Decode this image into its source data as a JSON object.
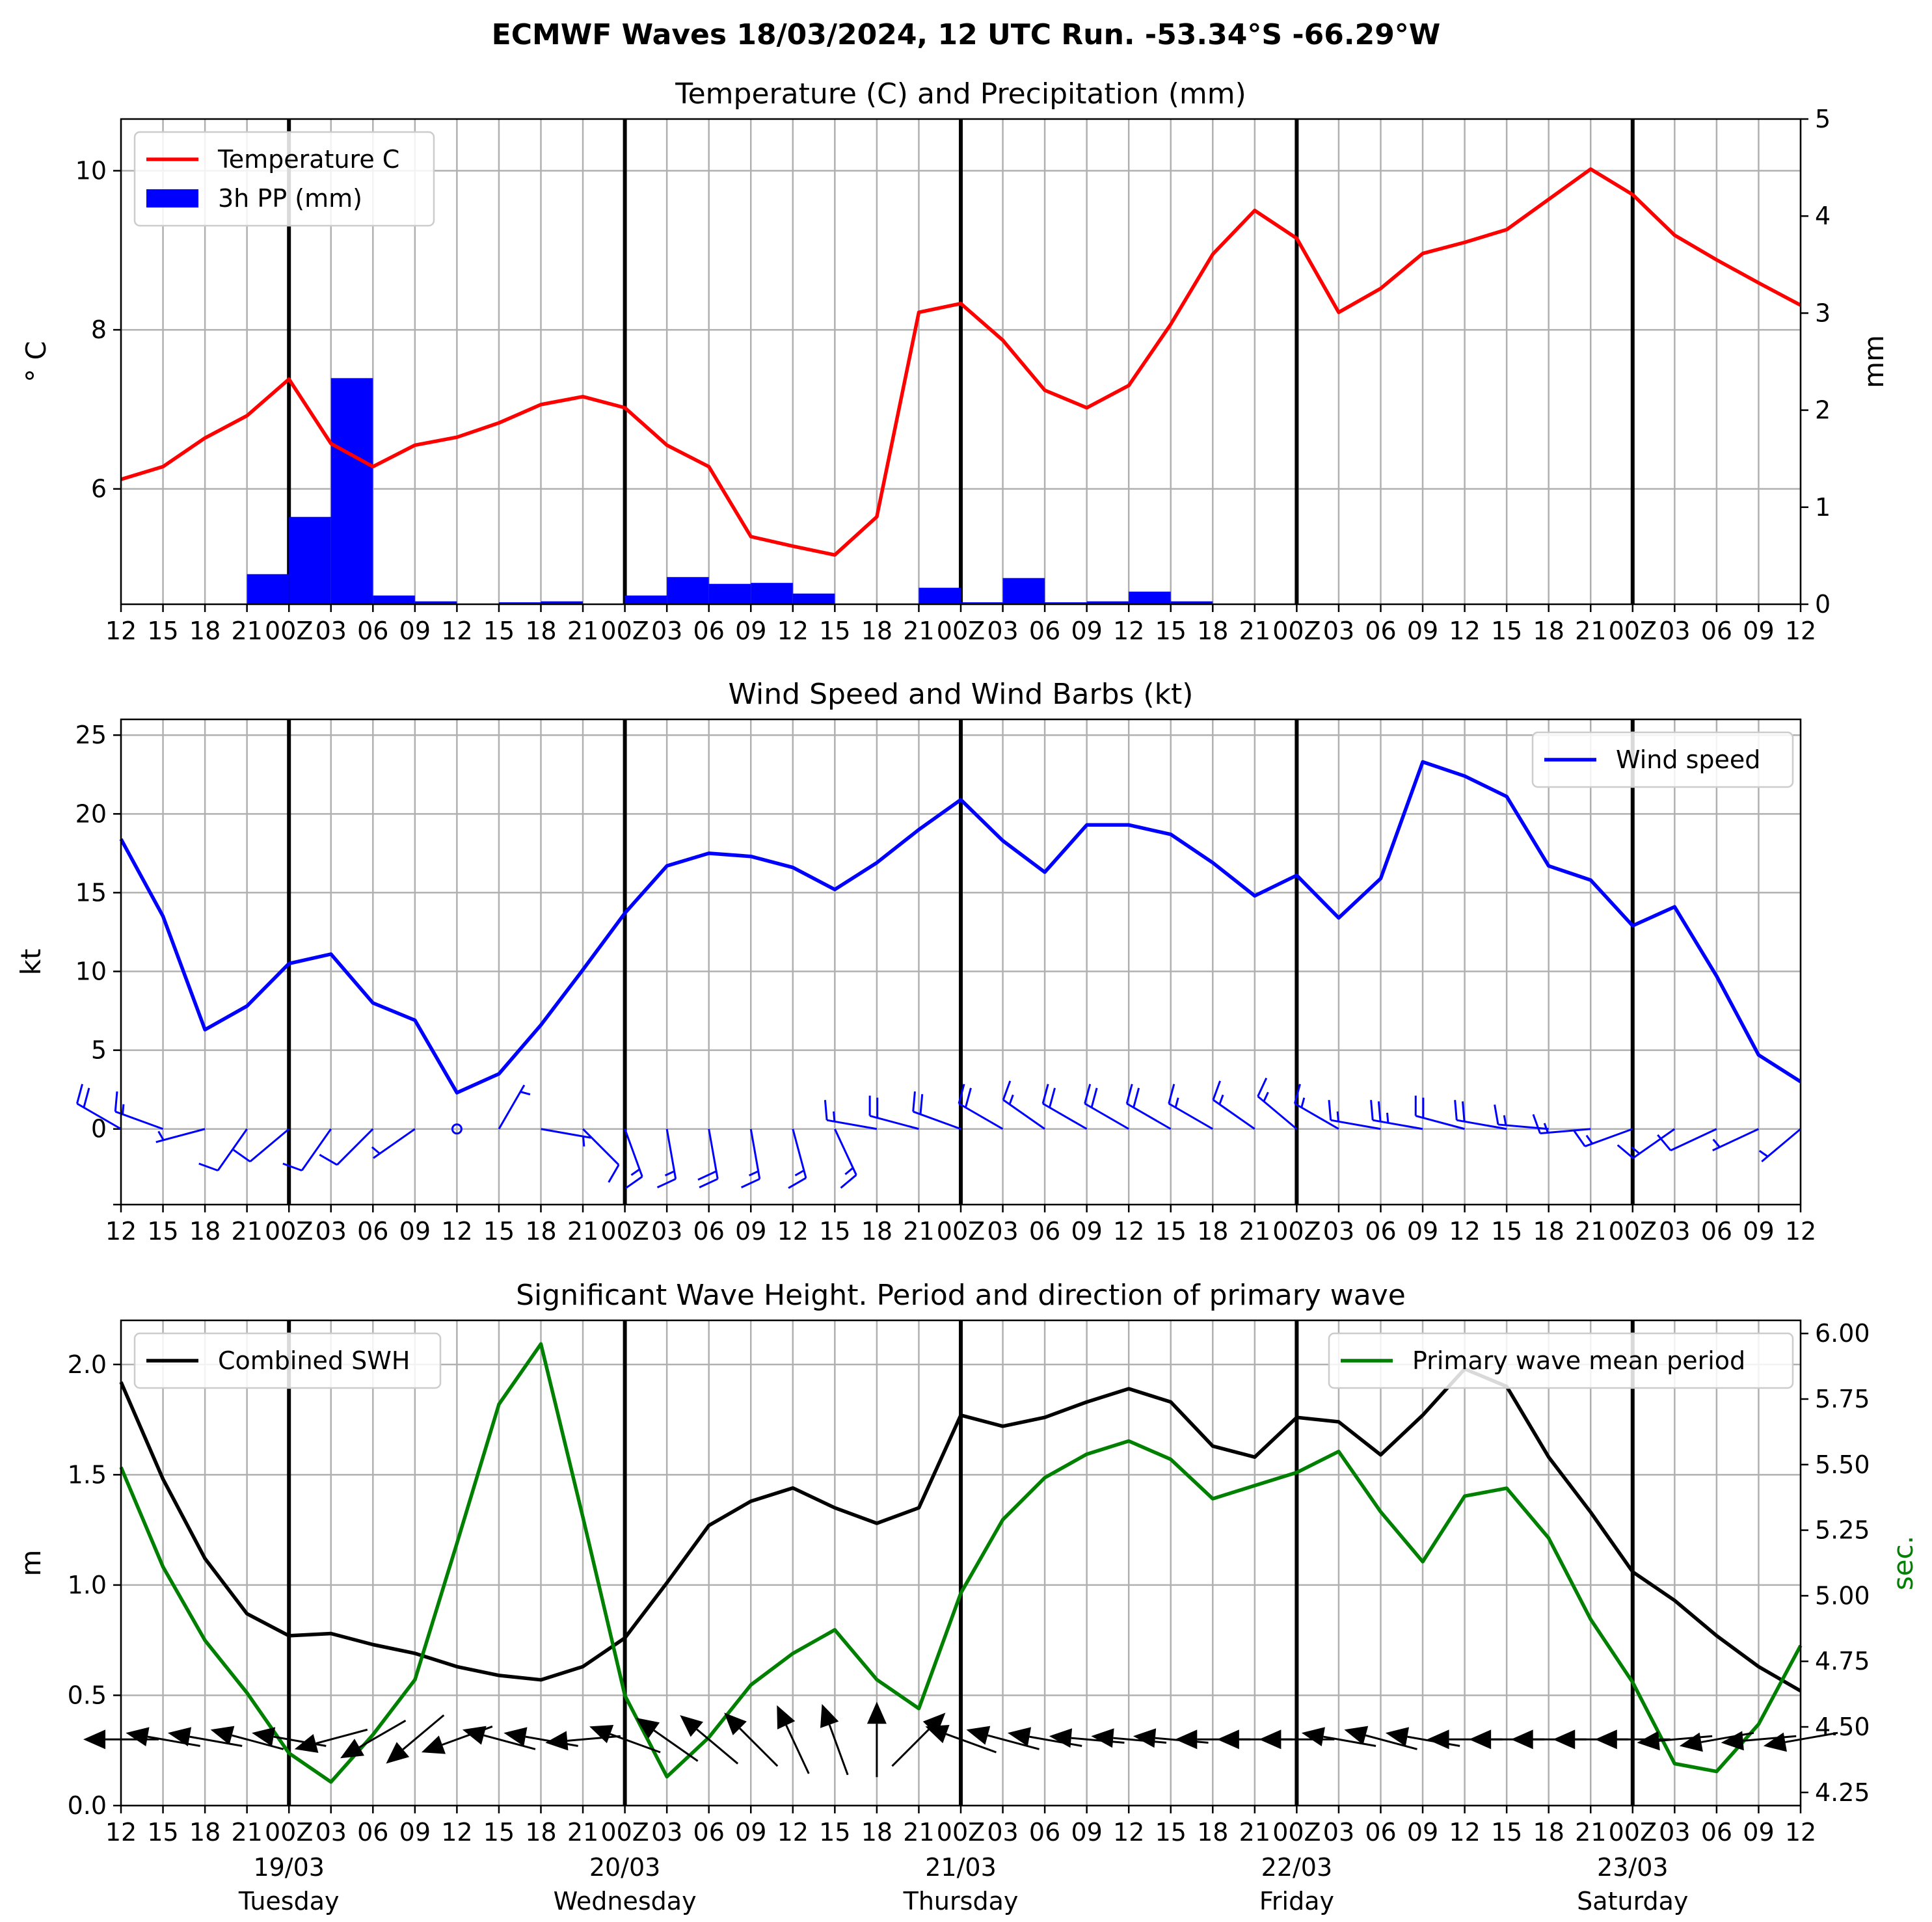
{
  "chart_data": {
    "suptitle": "ECMWF Waves 18/03/2024, 12 UTC Run. -53.34°S -66.29°W",
    "x_tick_labels": [
      "12",
      "15",
      "18",
      "21",
      "00Z",
      "03",
      "06",
      "09",
      "12",
      "15",
      "18",
      "21",
      "00Z",
      "03",
      "06",
      "09",
      "12",
      "15",
      "18",
      "21",
      "00Z",
      "03",
      "06",
      "09",
      "12",
      "15",
      "18",
      "21",
      "00Z",
      "03",
      "06",
      "09",
      "12",
      "15",
      "18",
      "21",
      "00Z",
      "03",
      "06",
      "09",
      "12"
    ],
    "x_tick_labels_wave": [
      "12",
      "15",
      "18",
      "21",
      "00Z",
      "03",
      "06",
      "09",
      "12",
      "15",
      "18",
      "21",
      "00Z",
      "03",
      "06",
      "09",
      "12",
      "15",
      "18",
      "21",
      "00Z",
      "03",
      "06",
      "09",
      "12",
      "15",
      "18",
      "21",
      "00Z",
      "03",
      "06",
      "09",
      "12",
      "15",
      "18",
      "21",
      "00Z",
      "03",
      "06",
      "09",
      "12"
    ],
    "day_labels": [
      {
        "date": "19/03",
        "day": "Tuesday"
      },
      {
        "date": "20/03",
        "day": "Wednesday"
      },
      {
        "date": "21/03",
        "day": "Thursday"
      },
      {
        "date": "22/03",
        "day": "Friday"
      },
      {
        "date": "23/03",
        "day": "Saturday"
      }
    ],
    "panels": [
      {
        "type": "line+bar",
        "title": "Temperature (C) and Precipitation (mm)",
        "ylabel": "$^\\circ$C",
        "ylabel_display": "° C",
        "y2label": "mm",
        "ylim": [
          4.55,
          10.65
        ],
        "y2lim": [
          0,
          5
        ],
        "yticks": [
          6,
          8,
          10
        ],
        "y2ticks": [
          0,
          1,
          2,
          3,
          4,
          5
        ],
        "legend": "top-left",
        "series": [
          {
            "name": "Temperature C",
            "color": "#ff0000",
            "values": [
              6.12,
              6.28,
              6.64,
              6.92,
              7.38,
              6.57,
              6.28,
              6.55,
              6.65,
              6.83,
              7.06,
              7.16,
              7.02,
              6.55,
              6.28,
              5.4,
              5.28,
              5.17,
              5.65,
              8.22,
              8.33,
              7.87,
              7.24,
              7.02,
              7.3,
              8.07,
              8.95,
              9.5,
              9.15,
              8.22,
              8.52,
              8.96,
              9.1,
              9.26,
              9.64,
              10.02,
              9.7,
              9.19,
              8.88,
              8.59,
              8.31
            ]
          },
          {
            "name": "3h PP (mm)",
            "color": "#0000ff",
            "axis": "right",
            "values": [
              0,
              0,
              0,
              0.31,
              0.9,
              2.33,
              0.09,
              0.03,
              0,
              0.02,
              0.03,
              0,
              0.09,
              0.28,
              0.21,
              0.22,
              0.11,
              0,
              0,
              0.17,
              0.02,
              0.27,
              0.02,
              0.03,
              0.13,
              0.03,
              0,
              0,
              0,
              0,
              0,
              0,
              0,
              0,
              0,
              0,
              0,
              0,
              0,
              0
            ]
          }
        ]
      },
      {
        "type": "line+barbs",
        "title": "Wind Speed and Wind Barbs (kt)",
        "ylabel": "kt",
        "ylim": [
          -4.8,
          26.0
        ],
        "yticks": [
          0,
          5,
          10,
          15,
          20,
          25
        ],
        "legend": "top-right",
        "series": [
          {
            "name": "Wind speed",
            "color": "#0000ff",
            "values": [
              18.4,
              13.5,
              6.3,
              7.8,
              10.5,
              11.1,
              8.0,
              6.9,
              2.3,
              3.5,
              6.6,
              10.1,
              13.7,
              16.7,
              17.5,
              17.3,
              16.6,
              15.2,
              16.9,
              19.0,
              20.9,
              18.3,
              16.3,
              19.3,
              19.3,
              18.7,
              16.9,
              14.8,
              16.1,
              13.4,
              15.9,
              23.3,
              22.4,
              21.1,
              16.7,
              15.8,
              12.9,
              14.1,
              9.7,
              4.7,
              3.0
            ]
          }
        ],
        "barbs": {
          "color": "#0000ff",
          "direction_deg": [
            300,
            290,
            255,
            215,
            230,
            215,
            225,
            235,
            0,
            30,
            100,
            135,
            160,
            170,
            170,
            170,
            165,
            155,
            280,
            285,
            290,
            300,
            305,
            300,
            300,
            300,
            300,
            305,
            310,
            300,
            280,
            280,
            285,
            280,
            275,
            265,
            250,
            235,
            245,
            245,
            230
          ]
        }
      },
      {
        "type": "line+arrows",
        "title": "Significant Wave Height. Period and direction of primary wave",
        "ylabel": "m",
        "y2label": "sec.",
        "y2label_color": "#008000",
        "ylim": [
          0.0,
          2.2
        ],
        "y2lim": [
          4.2,
          6.05
        ],
        "yticks": [
          0.0,
          0.5,
          1.0,
          1.5,
          2.0
        ],
        "yticks_labels": [
          "0.0",
          "0.5",
          "1.0",
          "1.5",
          "2.0"
        ],
        "y2ticks": [
          4.25,
          4.5,
          4.75,
          5.0,
          5.25,
          5.5,
          5.75,
          6.0
        ],
        "y2ticks_labels": [
          "4.25",
          "4.50",
          "4.75",
          "5.00",
          "5.25",
          "5.50",
          "5.75",
          "6.00"
        ],
        "legend_left": "top-left",
        "legend_right": "top-right",
        "series": [
          {
            "name": "Combined SWH",
            "color": "#000000",
            "values": [
              1.92,
              1.48,
              1.12,
              0.87,
              0.77,
              0.78,
              0.73,
              0.69,
              0.63,
              0.59,
              0.57,
              0.63,
              0.76,
              1.01,
              1.27,
              1.38,
              1.44,
              1.35,
              1.28,
              1.35,
              1.77,
              1.72,
              1.76,
              1.83,
              1.89,
              1.83,
              1.63,
              1.58,
              1.76,
              1.74,
              1.59,
              1.77,
              1.98,
              1.9,
              1.58,
              1.33,
              1.06,
              0.93,
              0.77,
              0.63,
              0.52
            ]
          },
          {
            "name": "Primary wave mean period",
            "color": "#008000",
            "axis": "right",
            "values": [
              5.49,
              5.11,
              4.83,
              4.63,
              4.4,
              4.29,
              4.47,
              4.68,
              5.2,
              5.73,
              5.96,
              5.3,
              4.62,
              4.31,
              4.46,
              4.66,
              4.78,
              4.87,
              4.68,
              4.57,
              5.01,
              5.29,
              5.45,
              5.54,
              5.59,
              5.52,
              5.37,
              5.42,
              5.47,
              5.55,
              5.32,
              5.13,
              5.38,
              5.41,
              5.22,
              4.91,
              4.67,
              4.36,
              4.33,
              4.51,
              4.81
            ]
          }
        ],
        "arrows": {
          "color": "#000000",
          "y_value": 0.3,
          "direction_deg": [
            270,
            280,
            280,
            285,
            280,
            255,
            240,
            230,
            250,
            285,
            280,
            265,
            290,
            305,
            310,
            315,
            335,
            340,
            0,
            45,
            290,
            285,
            280,
            275,
            275,
            275,
            270,
            270,
            270,
            280,
            285,
            280,
            270,
            270,
            270,
            270,
            270,
            265,
            260,
            265,
            260
          ]
        }
      }
    ]
  }
}
